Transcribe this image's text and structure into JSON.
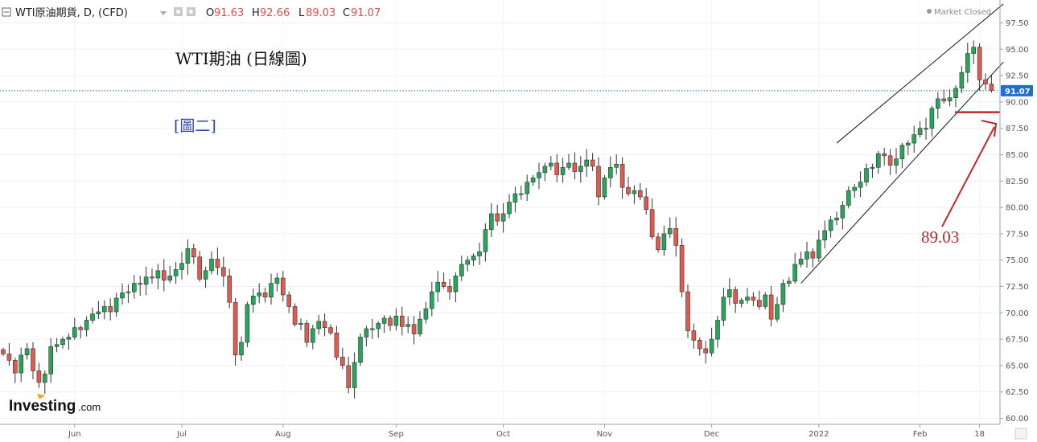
{
  "header": {
    "symbol": "WTI原油期貨, D, (CFD)",
    "open_label": "O",
    "open_value": "91.63",
    "high_label": "H",
    "high_value": "92.66",
    "low_label": "L",
    "low_value": "89.03",
    "close_label": "C",
    "close_value": "91.07",
    "status": "Market Closed"
  },
  "overlay": {
    "title": "WTI期油 (日線圖)",
    "subtitle": "[圖二]",
    "annotation": "89.03"
  },
  "brand": {
    "name": "Investing",
    "suffix": ".com"
  },
  "price_tag": "91.07",
  "colors": {
    "up": "#26a65b",
    "down": "#e05a4f",
    "accent": "#1f6fd1",
    "annotation": "#c0272d",
    "channel": "#111111"
  },
  "chart_data": {
    "type": "candlestick",
    "ylim": [
      60,
      98
    ],
    "yticks": [
      "60.00",
      "62.50",
      "65.00",
      "67.50",
      "70.00",
      "72.50",
      "75.00",
      "77.50",
      "80.00",
      "82.50",
      "85.00",
      "87.50",
      "90.00",
      "92.50",
      "95.00",
      "97.50"
    ],
    "xticks": [
      {
        "label": "Jun",
        "index": 12
      },
      {
        "label": "Jul",
        "index": 30
      },
      {
        "label": "Aug",
        "index": 47
      },
      {
        "label": "Sep",
        "index": 66
      },
      {
        "label": "Oct",
        "index": 84
      },
      {
        "label": "Nov",
        "index": 101
      },
      {
        "label": "Dec",
        "index": 119
      },
      {
        "label": "2022",
        "index": 137
      },
      {
        "label": "Feb",
        "index": 154
      },
      {
        "label": "18",
        "index": 164
      }
    ],
    "current_price": 91.07,
    "support_level": 89.03,
    "channel": {
      "upper": [
        [
          140,
          86.1
        ],
        [
          168,
          99.3
        ]
      ],
      "lower": [
        [
          134,
          72.8
        ],
        [
          168,
          93.8
        ]
      ]
    },
    "close": [
      66.1,
      65.5,
      64.3,
      66.0,
      66.6,
      64.5,
      63.4,
      64.2,
      66.8,
      67.0,
      67.5,
      67.7,
      68.6,
      68.4,
      69.3,
      69.9,
      70.1,
      70.6,
      70.1,
      71.4,
      71.9,
      72.0,
      72.8,
      72.7,
      73.4,
      73.3,
      74.0,
      73.1,
      73.5,
      74.1,
      74.7,
      76.1,
      75.3,
      73.2,
      74.0,
      75.1,
      74.3,
      73.5,
      71.0,
      66.0,
      67.2,
      70.8,
      71.6,
      71.9,
      71.5,
      72.8,
      73.3,
      71.7,
      70.6,
      68.9,
      69.0,
      67.2,
      68.5,
      69.2,
      68.6,
      68.1,
      65.8,
      65.0,
      62.9,
      65.3,
      67.7,
      68.5,
      68.5,
      69.0,
      69.5,
      68.8,
      69.7,
      68.7,
      68.9,
      68.0,
      69.4,
      70.4,
      72.0,
      72.9,
      72.5,
      72.0,
      73.5,
      74.6,
      75.0,
      75.4,
      75.8,
      77.9,
      79.4,
      78.7,
      79.4,
      80.5,
      81.3,
      81.3,
      82.4,
      82.8,
      83.3,
      83.9,
      84.2,
      83.1,
      83.8,
      84.2,
      83.4,
      83.9,
      84.5,
      83.9,
      81.0,
      82.8,
      83.8,
      84.1,
      81.9,
      81.3,
      81.6,
      81.0,
      79.8,
      77.2,
      76.0,
      77.5,
      78.0,
      76.4,
      72.0,
      68.3,
      67.4,
      66.6,
      66.2,
      67.5,
      69.3,
      71.5,
      72.2,
      70.9,
      71.2,
      71.5,
      71.2,
      70.6,
      71.7,
      69.4,
      70.8,
      72.8,
      73.0,
      74.6,
      75.1,
      75.8,
      75.2,
      76.9,
      77.8,
      78.8,
      79.0,
      80.2,
      81.6,
      81.9,
      82.4,
      83.7,
      83.8,
      85.1,
      84.9,
      84.0,
      84.6,
      85.9,
      86.1,
      86.9,
      87.5,
      87.5,
      89.4,
      90.3,
      90.1,
      90.4,
      91.3,
      92.8,
      94.6,
      95.2,
      92.1,
      91.7,
      91.1
    ]
  }
}
